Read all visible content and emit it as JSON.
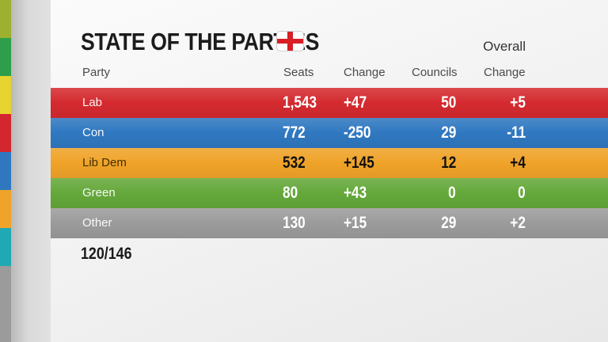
{
  "title": "STATE OF THE PARTIES",
  "overall_label": "Overall",
  "headers": {
    "party": "Party",
    "seats": "Seats",
    "change": "Change",
    "councils": "Councils",
    "councils_change": "Change"
  },
  "rows": [
    {
      "party": "Lab",
      "seats": "1,543",
      "change": "+47",
      "councils": "50",
      "councils_change": "+5",
      "color": "#d42a2f"
    },
    {
      "party": "Con",
      "seats": "772",
      "change": "-250",
      "councils": "29",
      "councils_change": "-11",
      "color": "#2f78c0"
    },
    {
      "party": "Lib Dem",
      "seats": "532",
      "change": "+145",
      "councils": "12",
      "councils_change": "+4",
      "color": "#f0a329"
    },
    {
      "party": "Green",
      "seats": "80",
      "change": "+43",
      "councils": "0",
      "councils_change": "0",
      "color": "#64a83a"
    },
    {
      "party": "Other",
      "seats": "130",
      "change": "+15",
      "councils": "29",
      "councils_change": "+2",
      "color": "#9b9b9b"
    }
  ],
  "progress": "120/146",
  "side_stripe_colors": [
    "#9db02f",
    "#2f9e4a",
    "#e8d430",
    "#d3262f",
    "#2f78c0",
    "#f0a329",
    "#21a8b5",
    "#9b9b9b"
  ],
  "flag_icon": "england-flag-icon"
}
